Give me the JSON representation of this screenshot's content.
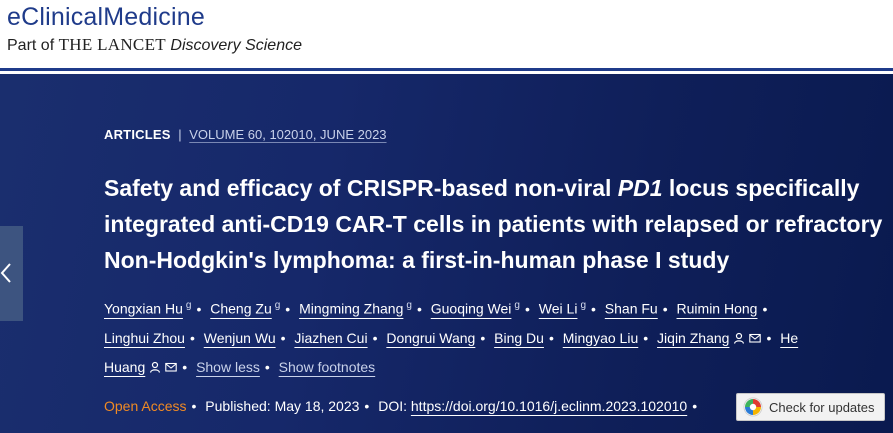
{
  "header": {
    "brand": "eClinicalMedicine",
    "part_of": "Part of",
    "lancet": "THE LANCET",
    "discovery": "Discovery Science"
  },
  "meta": {
    "type": "ARTICLES",
    "separator": "|",
    "volume": "VOLUME 60, 102010, JUNE 2023"
  },
  "title": {
    "part1": "Safety and efficacy of CRISPR-based non-viral ",
    "gene": "PD1",
    "part2": " locus specifically integrated anti-CD19 CAR-T cells in patients with relapsed or refractory Non-Hodgkin's lymphoma: a first-in-human phase I study"
  },
  "authors": {
    "list": [
      "Yongxian Hu",
      "Cheng Zu",
      "Mingming Zhang",
      "Guoqing Wei",
      "Wei Li",
      "Shan Fu",
      "Ruimin Hong",
      "Linghui Zhou",
      "Wenjun Wu",
      "Jiazhen Cui",
      "Dongrui Wang",
      "Bing Du",
      "Mingyao Liu",
      "Jiqin Zhang",
      "He Huang"
    ],
    "footnote_mark": "g",
    "show_less": "Show less",
    "show_footnotes": "Show footnotes"
  },
  "publication": {
    "open_access": "Open Access",
    "published_label": "Published:",
    "published_date": "May 18, 2023",
    "doi_label": "DOI:",
    "doi_link": "https://doi.org/10.1016/j.eclinm.2023.102010"
  },
  "check_updates": {
    "label": "Check for updates"
  },
  "icons": {
    "side_tab": "chevron-left-icon",
    "person": "person-icon",
    "email": "email-icon",
    "crossmark": "crossmark-icon"
  },
  "colors": {
    "brand_blue": "#1f3b8a",
    "hero_bg": "#14276a",
    "open_access": "#f08a24"
  }
}
